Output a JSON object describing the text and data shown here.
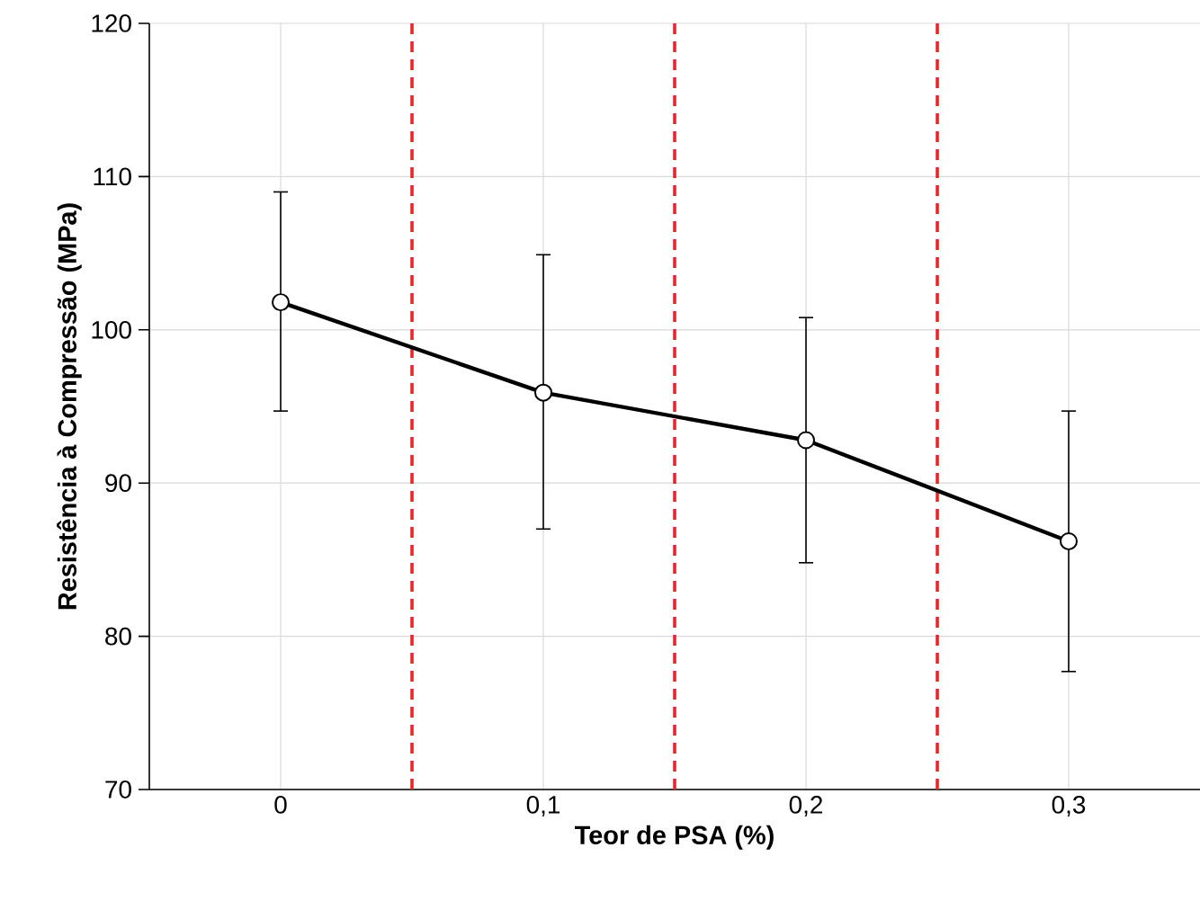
{
  "chart_data": {
    "type": "line",
    "xlabel": "Teor de PSA (%)",
    "ylabel": "Resistência à Compressão (MPa)",
    "x": [
      0,
      0.1,
      0.2,
      0.3
    ],
    "series": [
      {
        "color": "#000000",
        "values": [
          101.8,
          95.9,
          92.8,
          86.2
        ],
        "errors": [
          [
            94.7,
            109.0
          ],
          [
            87.0,
            104.9
          ],
          [
            84.8,
            100.8
          ],
          [
            77.7,
            94.7
          ]
        ]
      }
    ],
    "xlim": [
      -0.05,
      0.35
    ],
    "ylim": [
      70,
      120
    ],
    "xticks": [
      0,
      {
        "value": 0.1,
        "label": "0,1"
      },
      {
        "value": 0.2,
        "label": "0,2"
      },
      {
        "value": 0.3,
        "label": "0,3"
      }
    ],
    "yticks": [
      70,
      80,
      90,
      100,
      110,
      120
    ],
    "ref_lines": [
      {
        "axis": "x",
        "value": 0.05,
        "color": "#e8262b",
        "line_style": "dashed"
      },
      {
        "axis": "x",
        "value": 0.15,
        "color": "#e8262b",
        "line_style": "dashed"
      },
      {
        "axis": "x",
        "value": 0.25,
        "color": "#e8262b",
        "line_style": "dashed"
      }
    ],
    "grid": true,
    "marker": "circle",
    "line_style": "solid"
  }
}
